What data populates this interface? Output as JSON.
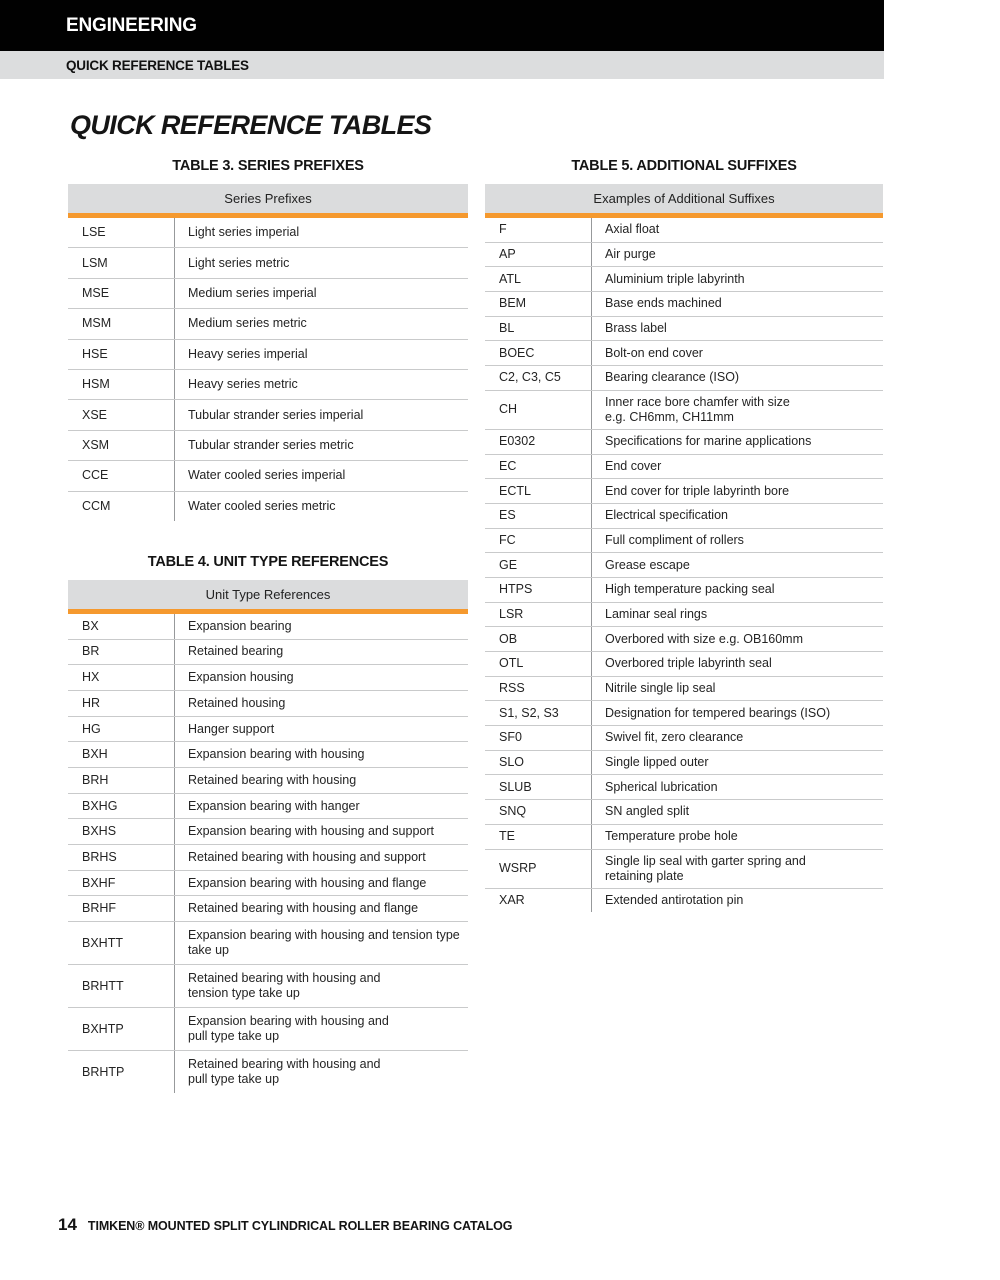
{
  "header": {
    "section": "ENGINEERING",
    "subsection": "QUICK REFERENCE TABLES"
  },
  "page_title": "QUICK REFERENCE TABLES",
  "tables": [
    {
      "heading": "TABLE 3. SERIES PREFIXES",
      "header_bar": "Series Prefixes",
      "rows": [
        {
          "code": "LSE",
          "desc": "Light series imperial"
        },
        {
          "code": "LSM",
          "desc": "Light series metric"
        },
        {
          "code": "MSE",
          "desc": "Medium series imperial"
        },
        {
          "code": "MSM",
          "desc": "Medium series metric"
        },
        {
          "code": "HSE",
          "desc": "Heavy series imperial"
        },
        {
          "code": "HSM",
          "desc": "Heavy series metric"
        },
        {
          "code": "XSE",
          "desc": "Tubular strander series imperial"
        },
        {
          "code": "XSM",
          "desc": "Tubular strander series metric"
        },
        {
          "code": "CCE",
          "desc": "Water cooled series imperial"
        },
        {
          "code": "CCM",
          "desc": "Water cooled series metric"
        }
      ]
    },
    {
      "heading": "TABLE 4. UNIT TYPE REFERENCES",
      "header_bar": "Unit Type References",
      "rows": [
        {
          "code": "BX",
          "desc": "Expansion bearing"
        },
        {
          "code": "BR",
          "desc": "Retained bearing"
        },
        {
          "code": "HX",
          "desc": "Expansion housing"
        },
        {
          "code": "HR",
          "desc": "Retained housing"
        },
        {
          "code": "HG",
          "desc": "Hanger support"
        },
        {
          "code": "BXH",
          "desc": "Expansion bearing with housing"
        },
        {
          "code": "BRH",
          "desc": "Retained bearing with housing"
        },
        {
          "code": "BXHG",
          "desc": "Expansion bearing with hanger"
        },
        {
          "code": "BXHS",
          "desc": "Expansion bearing with housing and support"
        },
        {
          "code": "BRHS",
          "desc": "Retained bearing with housing and support"
        },
        {
          "code": "BXHF",
          "desc": "Expansion bearing with housing and flange"
        },
        {
          "code": "BRHF",
          "desc": "Retained bearing with housing and flange"
        },
        {
          "code": "BXHTT",
          "desc": "Expansion bearing with housing and tension type\ntake up"
        },
        {
          "code": "BRHTT",
          "desc": "Retained bearing with housing and\ntension type take up"
        },
        {
          "code": "BXHTP",
          "desc": "Expansion bearing with housing and\npull type take up"
        },
        {
          "code": "BRHTP",
          "desc": "Retained bearing with housing and\npull type take up"
        }
      ]
    },
    {
      "heading": "TABLE 5. ADDITIONAL SUFFIXES",
      "header_bar": "Examples of Additional Suffixes",
      "rows": [
        {
          "code": "F",
          "desc": "Axial float"
        },
        {
          "code": "AP",
          "desc": "Air purge"
        },
        {
          "code": "ATL",
          "desc": "Aluminium triple labyrinth"
        },
        {
          "code": "BEM",
          "desc": "Base ends machined"
        },
        {
          "code": "BL",
          "desc": "Brass label"
        },
        {
          "code": "BOEC",
          "desc": "Bolt-on end cover"
        },
        {
          "code": "C2, C3, C5",
          "desc": "Bearing clearance (ISO)"
        },
        {
          "code": "CH",
          "desc": "Inner race bore chamfer with size\ne.g. CH6mm, CH11mm"
        },
        {
          "code": "E0302",
          "desc": "Specifications for marine applications"
        },
        {
          "code": "EC",
          "desc": "End cover"
        },
        {
          "code": "ECTL",
          "desc": "End cover for triple labyrinth bore"
        },
        {
          "code": "ES",
          "desc": "Electrical specification"
        },
        {
          "code": "FC",
          "desc": "Full compliment of rollers"
        },
        {
          "code": "GE",
          "desc": "Grease escape"
        },
        {
          "code": "HTPS",
          "desc": "High temperature packing seal"
        },
        {
          "code": "LSR",
          "desc": "Laminar seal rings"
        },
        {
          "code": "OB",
          "desc": "Overbored with size e.g. OB160mm"
        },
        {
          "code": "OTL",
          "desc": "Overbored triple labyrinth seal"
        },
        {
          "code": "RSS",
          "desc": "Nitrile single lip seal"
        },
        {
          "code": "S1, S2, S3",
          "desc": "Designation for tempered bearings (ISO)"
        },
        {
          "code": "SF0",
          "desc": "Swivel fit, zero clearance"
        },
        {
          "code": "SLO",
          "desc": "Single lipped outer"
        },
        {
          "code": "SLUB",
          "desc": "Spherical lubrication"
        },
        {
          "code": "SNQ",
          "desc": "SN angled split"
        },
        {
          "code": "TE",
          "desc": "Temperature probe hole"
        },
        {
          "code": "WSRP",
          "desc": "Single lip seal with garter spring and\nretaining plate"
        },
        {
          "code": "XAR",
          "desc": "Extended antirotation pin"
        }
      ]
    }
  ],
  "footer": {
    "page_number": "14",
    "text": "TIMKEN® MOUNTED SPLIT CYLINDRICAL ROLLER BEARING CATALOG"
  },
  "colors": {
    "accent_orange": "#F5992E",
    "header_gray": "#DBDCDD",
    "top_bar_black": "#010101"
  }
}
